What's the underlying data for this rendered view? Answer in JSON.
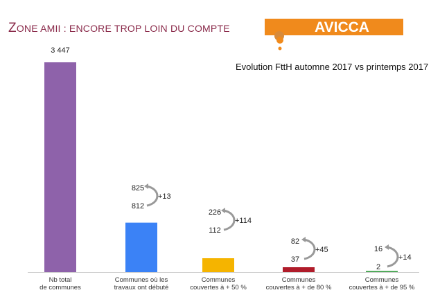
{
  "header": {
    "title_first": "Z",
    "title_rest": "ONE AMII : ENCORE TROP LOIN DU COMPTE",
    "logo_text": "AVICCA",
    "subtitle": "Evolution FttH automne 2017 vs printemps 2017"
  },
  "colors": {
    "title": "#8a2a4a",
    "logo": "#f08a1c"
  },
  "chart_data": {
    "type": "bar",
    "categories": [
      "Nb total\nde communes",
      "Communes où les\ntravaux ont débuté",
      "Communes\ncouvertes à + 50 %",
      "Communes\ncouvertes à + de 80 %",
      "Communes\ncouvertes à + de 95  %"
    ],
    "series": [
      {
        "values": [
          3447,
          812,
          112,
          37,
          2
        ]
      }
    ],
    "value_labels": [
      "3 447",
      "812",
      "112",
      "37",
      "2"
    ],
    "new_values": [
      null,
      825,
      226,
      82,
      16
    ],
    "deltas": [
      null,
      "+13",
      "+114",
      "+45",
      "+14"
    ],
    "colors": [
      "#8e62aa",
      "#3b82f6",
      "#f5b400",
      "#b01c2a",
      "#2e9a3a"
    ],
    "ylim": [
      0,
      3447
    ],
    "grid": false
  }
}
